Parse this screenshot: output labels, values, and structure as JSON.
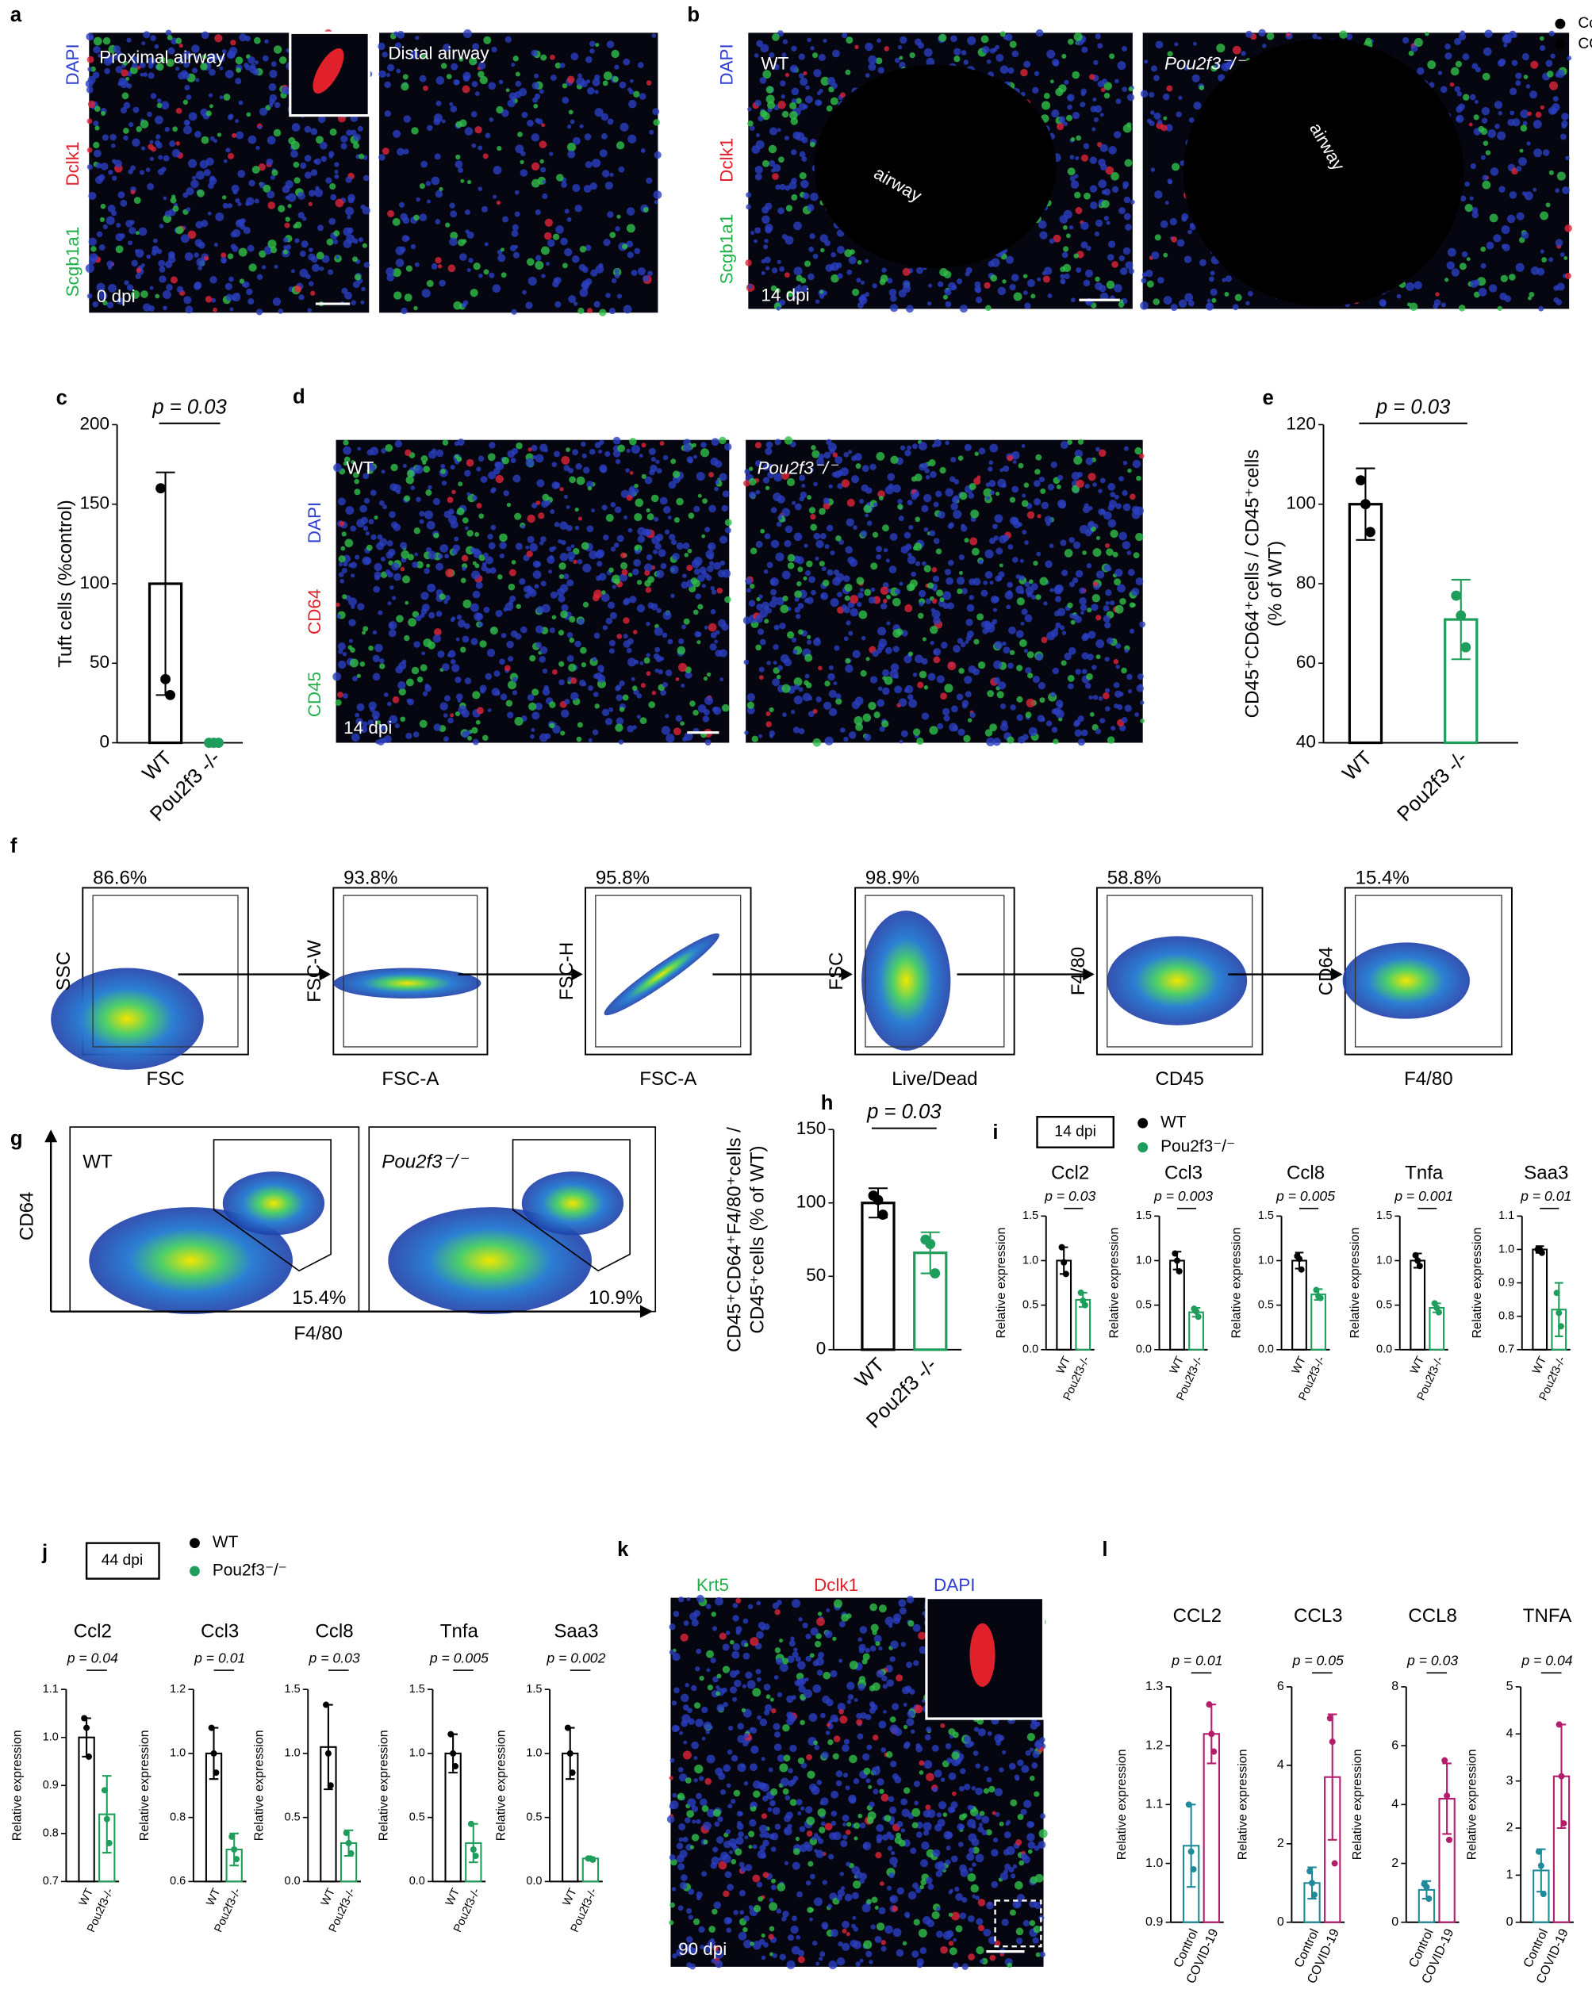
{
  "figure": {
    "a": {
      "letter": "a",
      "stains": [
        "DAPI",
        "Dclk1",
        "Scgb1a1"
      ],
      "labels": [
        "Proximal airway",
        "Distal airway"
      ],
      "time": "0 dpi"
    },
    "b": {
      "letter": "b",
      "stains": [
        "DAPI",
        "Dclk1",
        "Scgb1a1"
      ],
      "labels": [
        "WT",
        "Pou2f3⁻/⁻"
      ],
      "regions": [
        "airway",
        "airway"
      ],
      "time": "14 dpi"
    },
    "d": {
      "letter": "d",
      "stains": [
        "DAPI",
        "CD64",
        "CD45"
      ],
      "labels": [
        "WT",
        "Pou2f3⁻/⁻"
      ],
      "time": "14 dpi"
    },
    "f": {
      "letter": "f",
      "plots": [
        {
          "percent": "86.6%",
          "y_label": "SSC",
          "x_label": "FSC"
        },
        {
          "percent": "93.8%",
          "y_label": "FSC-W",
          "x_label": "FSC-A"
        },
        {
          "percent": "95.8%",
          "y_label": "FSC-H",
          "x_label": "FSC-A"
        },
        {
          "percent": "98.9%",
          "y_label": "FSC",
          "x_label": "Live/Dead"
        },
        {
          "percent": "58.8%",
          "y_label": "F4/80",
          "x_label": "CD45"
        },
        {
          "percent": "15.4%",
          "y_label": "CD64",
          "x_label": "F4/80"
        }
      ]
    },
    "g": {
      "letter": "g",
      "labels": [
        "WT",
        "Pou2f3⁻/⁻"
      ],
      "percents": [
        "15.4%",
        "10.9%"
      ],
      "y_label": "CD64",
      "x_label": "F4/80"
    },
    "i": {
      "letter": "i",
      "tag": "14 dpi",
      "legend": [
        "WT",
        "Pou2f3⁻/⁻"
      ]
    },
    "j": {
      "letter": "j",
      "tag": "44 dpi",
      "legend": [
        "WT",
        "Pou2f3⁻/⁻"
      ]
    },
    "k": {
      "letter": "k",
      "stains": [
        "Krt5",
        "Dclk1",
        "DAPI"
      ],
      "time": "90 dpi"
    },
    "l": {
      "letter": "l",
      "legend": [
        "Control",
        "COVID-19"
      ]
    }
  },
  "chart_data": [
    {
      "type": "bar",
      "panel": "c",
      "annotation": "p = 0.03",
      "y_label": "Tuft cells (%control)",
      "categories": [
        "WT",
        "Pou2f3 -/-"
      ],
      "colors": [
        "#000000",
        "#1e9e5a"
      ],
      "values": [
        100,
        0
      ],
      "errors": [
        70,
        0
      ],
      "points": [
        [
          160,
          40,
          30
        ],
        [
          0,
          0,
          0
        ]
      ],
      "ylim": [
        0,
        200
      ],
      "yticks": [
        0,
        50,
        100,
        150,
        200
      ]
    },
    {
      "type": "bar",
      "panel": "e",
      "annotation": "p = 0.03",
      "y_label": [
        "CD45⁺CD64⁺cells / CD45⁺cells",
        "(% of WT)"
      ],
      "categories": [
        "WT",
        "Pou2f3 -/-"
      ],
      "colors": [
        "#000000",
        "#1e9e5a"
      ],
      "values": [
        100,
        71
      ],
      "errors": [
        9,
        10
      ],
      "points": [
        [
          106,
          100,
          93
        ],
        [
          77,
          72,
          64
        ]
      ],
      "ylim": [
        40,
        120
      ],
      "yticks": [
        40,
        60,
        80,
        100,
        120
      ]
    },
    {
      "type": "bar",
      "panel": "h",
      "annotation": "p = 0.03",
      "y_label": [
        "CD45⁺CD64⁺F4/80⁺cells /",
        "CD45⁺cells (% of WT)"
      ],
      "categories": [
        "WT",
        "Pou2f3 -/-"
      ],
      "colors": [
        "#000000",
        "#1e9e5a"
      ],
      "values": [
        100,
        66
      ],
      "errors": [
        10,
        14
      ],
      "points": [
        [
          105,
          102,
          92
        ],
        [
          75,
          72,
          52
        ]
      ],
      "ylim": [
        0,
        150
      ],
      "yticks": [
        0,
        50,
        100,
        150
      ]
    },
    {
      "type": "bar",
      "title": "Ccl2",
      "annotation": "p = 0.03",
      "y_label": "Relative expression",
      "categories": [
        "WT",
        "Pou2f3-/-"
      ],
      "colors": [
        "#000000",
        "#1e9e5a"
      ],
      "values": [
        1,
        0.56
      ],
      "errors": [
        0.15,
        0.08
      ],
      "points": [
        [
          1.15,
          0.98,
          0.85
        ],
        [
          0.64,
          0.55,
          0.5
        ]
      ],
      "ylim": [
        0,
        1.5
      ],
      "yticks": [
        {
          "value": 0,
          "label": "0.0"
        },
        0.5,
        {
          "value": 1,
          "label": "1.0"
        },
        1.5
      ]
    },
    {
      "type": "bar",
      "title": "Ccl3",
      "annotation": "p = 0.003",
      "y_label": "Relative expression",
      "categories": [
        "WT",
        "Pou2f3-/-"
      ],
      "colors": [
        "#000000",
        "#1e9e5a"
      ],
      "values": [
        1,
        0.42
      ],
      "errors": [
        0.1,
        0.05
      ],
      "points": [
        [
          1.08,
          1,
          0.88
        ],
        [
          0.46,
          0.43,
          0.37
        ]
      ],
      "ylim": [
        0,
        1.5
      ],
      "yticks": [
        {
          "value": 0,
          "label": "0.0"
        },
        0.5,
        {
          "value": 1,
          "label": "1.0"
        },
        1.5
      ]
    },
    {
      "type": "bar",
      "title": "Ccl8",
      "annotation": "p = 0.005",
      "y_label": "Relative expression",
      "categories": [
        "WT",
        "Pou2f3-/-"
      ],
      "colors": [
        "#000000",
        "#1e9e5a"
      ],
      "values": [
        1,
        0.62
      ],
      "errors": [
        0.09,
        0.06
      ],
      "points": [
        [
          1.05,
          1.02,
          0.9
        ],
        [
          0.67,
          0.6,
          0.58
        ]
      ],
      "ylim": [
        0,
        1.5
      ],
      "yticks": [
        {
          "value": 0,
          "label": "0.0"
        },
        0.5,
        {
          "value": 1,
          "label": "1.0"
        },
        1.5
      ]
    },
    {
      "type": "bar",
      "title": "Tnfa",
      "annotation": "p = 0.001",
      "y_label": "Relative expression",
      "categories": [
        "WT",
        "Pou2f3-/-"
      ],
      "colors": [
        "#000000",
        "#1e9e5a"
      ],
      "values": [
        1,
        0.47
      ],
      "errors": [
        0.08,
        0.05
      ],
      "points": [
        [
          1.06,
          1,
          0.94
        ],
        [
          0.52,
          0.47,
          0.42
        ]
      ],
      "ylim": [
        0,
        1.5
      ],
      "yticks": [
        {
          "value": 0,
          "label": "0.0"
        },
        0.5,
        {
          "value": 1,
          "label": "1.0"
        },
        1.5
      ]
    },
    {
      "type": "bar",
      "title": "Saa3",
      "annotation": "p = 0.01",
      "y_label": "Relative expression",
      "categories": [
        "WT",
        "Pou2f3-/-"
      ],
      "colors": [
        "#000000",
        "#1e9e5a"
      ],
      "values": [
        1,
        0.82
      ],
      "errors": [
        0.01,
        0.08
      ],
      "points": [
        [
          1,
          1,
          0.99
        ],
        [
          0.87,
          0.81,
          0.77
        ]
      ],
      "ylim": [
        0.7,
        1.1
      ],
      "yticks": [
        0.7,
        0.8,
        0.9,
        {
          "value": 1,
          "label": "1.0"
        },
        1.1
      ]
    },
    {
      "type": "bar",
      "title": "Ccl2",
      "annotation": "p = 0.04",
      "y_label": "Relative expression",
      "categories": [
        "WT",
        "Pou2f3-/-"
      ],
      "colors": [
        "#000000",
        "#1e9e5a"
      ],
      "values": [
        1,
        0.84
      ],
      "errors": [
        0.04,
        0.08
      ],
      "points": [
        [
          1.04,
          1.02,
          0.96
        ],
        [
          0.89,
          0.83,
          0.78
        ]
      ],
      "ylim": [
        0.7,
        1.1
      ],
      "yticks": [
        0.7,
        0.8,
        0.9,
        {
          "value": 1,
          "label": "1.0"
        },
        1.1
      ]
    },
    {
      "type": "bar",
      "title": "Ccl3",
      "annotation": "p = 0.01",
      "y_label": "Relative expression",
      "categories": [
        "WT",
        "Pou2f3-/-"
      ],
      "colors": [
        "#000000",
        "#1e9e5a"
      ],
      "values": [
        1,
        0.7
      ],
      "errors": [
        0.08,
        0.05
      ],
      "points": [
        [
          1.08,
          1,
          0.94
        ],
        [
          0.74,
          0.7,
          0.67
        ]
      ],
      "ylim": [
        0.6,
        1.2
      ],
      "yticks": [
        0.6,
        0.8,
        {
          "value": 1,
          "label": "1.0"
        },
        1.2
      ]
    },
    {
      "type": "bar",
      "title": "Ccl8",
      "annotation": "p = 0.03",
      "y_label": "Relative expression",
      "categories": [
        "WT",
        "Pou2f3-/-"
      ],
      "colors": [
        "#000000",
        "#1e9e5a"
      ],
      "values": [
        1.05,
        0.3
      ],
      "errors": [
        0.33,
        0.1
      ],
      "points": [
        [
          1.38,
          1,
          0.75
        ],
        [
          0.38,
          0.3,
          0.22
        ]
      ],
      "ylim": [
        0,
        1.5
      ],
      "yticks": [
        {
          "value": 0,
          "label": "0.0"
        },
        0.5,
        {
          "value": 1,
          "label": "1.0"
        },
        1.5
      ]
    },
    {
      "type": "bar",
      "title": "Tnfa",
      "annotation": "p = 0.005",
      "y_label": "Relative expression",
      "categories": [
        "WT",
        "Pou2f3-/-"
      ],
      "colors": [
        "#000000",
        "#1e9e5a"
      ],
      "values": [
        1,
        0.3
      ],
      "errors": [
        0.15,
        0.15
      ],
      "points": [
        [
          1.15,
          1,
          0.9
        ],
        [
          0.45,
          0.25,
          0.2
        ]
      ],
      "ylim": [
        0,
        1.5
      ],
      "yticks": [
        {
          "value": 0,
          "label": "0.0"
        },
        0.5,
        {
          "value": 1,
          "label": "1.0"
        },
        1.5
      ]
    },
    {
      "type": "bar",
      "title": "Saa3",
      "annotation": "p = 0.002",
      "y_label": "Relative expression",
      "categories": [
        "WT",
        "Pou2f3-/-"
      ],
      "colors": [
        "#000000",
        "#1e9e5a"
      ],
      "values": [
        1,
        0.18
      ],
      "errors": [
        0.2,
        0.01
      ],
      "points": [
        [
          1.2,
          1,
          0.85
        ],
        [
          0.18,
          0.18,
          0.17
        ]
      ],
      "ylim": [
        0,
        1.5
      ],
      "yticks": [
        {
          "value": 0,
          "label": "0.0"
        },
        0.5,
        {
          "value": 1,
          "label": "1.0"
        },
        1.5
      ]
    },
    {
      "type": "bar",
      "title": "CCL2",
      "annotation": "p = 0.01",
      "y_label": "Relative expression",
      "categories": [
        "Control",
        "COVID-19"
      ],
      "colors": [
        "#1f8a99",
        "#b31d6b"
      ],
      "values": [
        1.03,
        1.22
      ],
      "errors": [
        0.07,
        0.05
      ],
      "points": [
        [
          1.1,
          1.02,
          0.99
        ],
        [
          1.27,
          1.22,
          1.19
        ]
      ],
      "ylim": [
        0.9,
        1.3
      ],
      "yticks": [
        0.9,
        {
          "value": 1,
          "label": "1.0"
        },
        1.1,
        1.2,
        1.3
      ]
    },
    {
      "type": "bar",
      "title": "CCL3",
      "annotation": "p = 0.05",
      "y_label": "Relative expression",
      "categories": [
        "Control",
        "COVID-19"
      ],
      "colors": [
        "#1f8a99",
        "#b31d6b"
      ],
      "values": [
        1,
        3.7
      ],
      "errors": [
        0.4,
        1.6
      ],
      "points": [
        [
          1.3,
          1,
          0.7
        ],
        [
          5.2,
          4.6,
          1.5
        ]
      ],
      "ylim": [
        0,
        6
      ],
      "yticks": [
        0,
        2,
        4,
        6
      ]
    },
    {
      "type": "bar",
      "title": "CCL8",
      "annotation": "p = 0.03",
      "y_label": "Relative expression",
      "categories": [
        "Control",
        "COVID-19"
      ],
      "colors": [
        "#1f8a99",
        "#b31d6b"
      ],
      "values": [
        1.1,
        4.2
      ],
      "errors": [
        0.3,
        1.2
      ],
      "points": [
        [
          1.3,
          1.2,
          0.8
        ],
        [
          5.5,
          4.3,
          2.8
        ]
      ],
      "ylim": [
        0,
        8
      ],
      "yticks": [
        0,
        2,
        4,
        6,
        8
      ]
    },
    {
      "type": "bar",
      "title": "TNFA",
      "annotation": "p = 0.04",
      "y_label": "Relative expression",
      "categories": [
        "Control",
        "COVID-19"
      ],
      "colors": [
        "#1f8a99",
        "#b31d6b"
      ],
      "values": [
        1.1,
        3.1
      ],
      "errors": [
        0.45,
        1.1
      ],
      "points": [
        [
          1.5,
          1.2,
          0.6
        ],
        [
          4.2,
          3.1,
          2.1
        ]
      ],
      "ylim": [
        0,
        5
      ],
      "yticks": [
        0,
        1,
        2,
        3,
        4,
        5
      ]
    }
  ]
}
